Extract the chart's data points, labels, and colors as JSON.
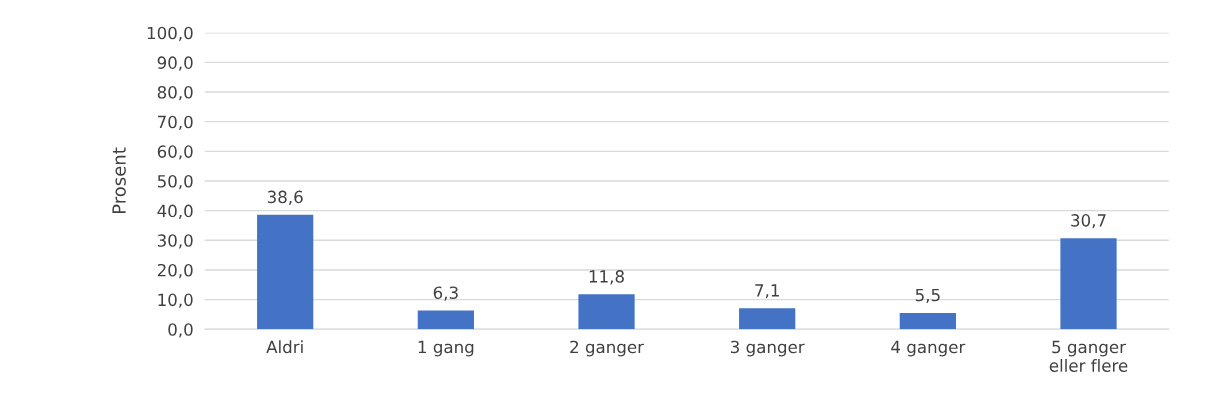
{
  "chart_data": {
    "type": "bar",
    "ylabel": "Prosent",
    "categories": [
      "Aldri",
      "1 gang",
      "2 ganger",
      "3 ganger",
      "4 ganger",
      "5 ganger\neller flere"
    ],
    "values": [
      38.6,
      6.3,
      11.8,
      7.1,
      5.5,
      30.7
    ],
    "value_labels": [
      "38,6",
      "6,3",
      "11,8",
      "7,1",
      "5,5",
      "30,7"
    ],
    "color": "#4472c4",
    "ylim": [
      0,
      100
    ],
    "yticks": [
      {
        "value": 0,
        "label": "0,0"
      },
      {
        "value": 10,
        "label": "10,0"
      },
      {
        "value": 20,
        "label": "20,0"
      },
      {
        "value": 30,
        "label": "30,0"
      },
      {
        "value": 40,
        "label": "40,0"
      },
      {
        "value": 50,
        "label": "50,0"
      },
      {
        "value": 60,
        "label": "60,0"
      },
      {
        "value": 70,
        "label": "70,0"
      },
      {
        "value": 80,
        "label": "80,0"
      },
      {
        "value": 90,
        "label": "90,0"
      },
      {
        "value": 100,
        "label": "100,0"
      }
    ],
    "grid": "y",
    "legend": false
  }
}
